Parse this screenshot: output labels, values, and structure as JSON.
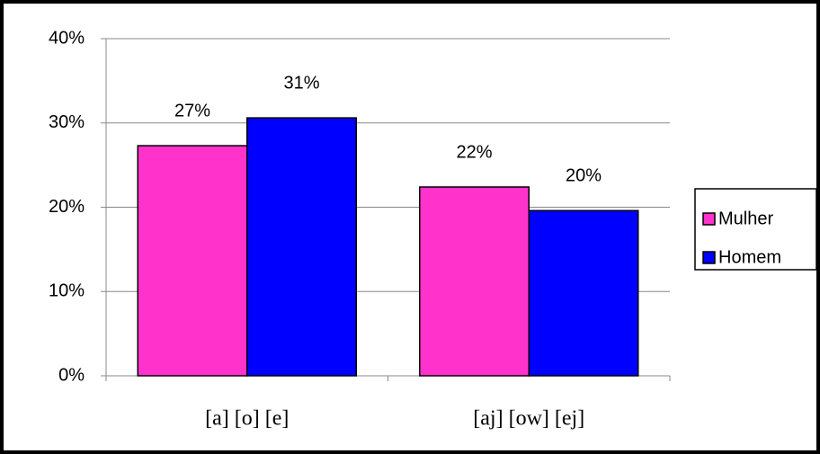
{
  "chart_data": {
    "type": "bar",
    "categories": [
      "[a] [o] [e]",
      "[aj] [ow] [ej]"
    ],
    "series": [
      {
        "name": "Mulher",
        "color": "#ff33cc",
        "values": [
          27.3,
          22.4
        ],
        "value_labels": [
          "27%",
          "22%"
        ]
      },
      {
        "name": "Homem",
        "color": "#0000ff",
        "values": [
          30.6,
          19.6
        ],
        "value_labels": [
          "31%",
          "20%"
        ]
      }
    ],
    "ylim": [
      0,
      40
    ],
    "yticks": [
      {
        "value": 0,
        "label": "0%"
      },
      {
        "value": 10,
        "label": "10%"
      },
      {
        "value": 20,
        "label": "20%"
      },
      {
        "value": 30,
        "label": "30%"
      },
      {
        "value": 40,
        "label": "40%"
      }
    ],
    "grid": true,
    "legend": "right"
  }
}
